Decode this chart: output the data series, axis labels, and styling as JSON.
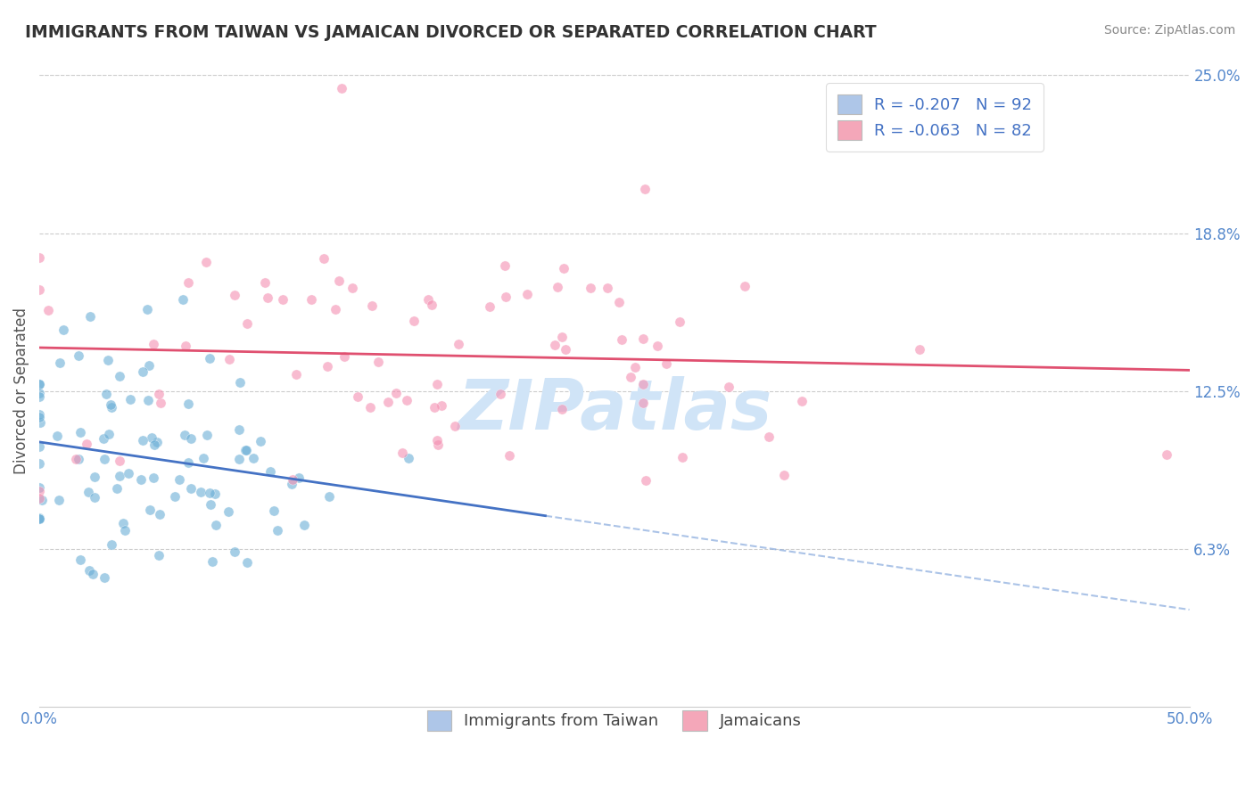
{
  "title": "IMMIGRANTS FROM TAIWAN VS JAMAICAN DIVORCED OR SEPARATED CORRELATION CHART",
  "source": "Source: ZipAtlas.com",
  "xlabel": "",
  "ylabel": "Divorced or Separated",
  "xlim": [
    0.0,
    50.0
  ],
  "ylim": [
    0.0,
    25.0
  ],
  "x_tick_labels": [
    "0.0%",
    "50.0%"
  ],
  "y_tick_values": [
    0.0,
    6.25,
    12.5,
    18.75,
    25.0
  ],
  "y_tick_labels": [
    "",
    "6.3%",
    "12.5%",
    "18.8%",
    "25.0%"
  ],
  "legend_entries": [
    {
      "label": "R = -0.207   N = 92",
      "facecolor": "#aec6e8"
    },
    {
      "label": "R = -0.063   N = 82",
      "facecolor": "#f4a7b9"
    }
  ],
  "scatter_blue": {
    "color": "#6aaed6",
    "alpha": 0.6,
    "R": -0.207,
    "N": 92,
    "x_mean": 4.0,
    "x_std": 4.5,
    "y_mean": 9.8,
    "y_std": 2.5
  },
  "scatter_pink": {
    "color": "#f48fb1",
    "alpha": 0.6,
    "R": -0.063,
    "N": 82,
    "x_mean": 18.0,
    "x_std": 10.0,
    "y_mean": 14.0,
    "y_std": 3.2
  },
  "trend_blue_solid_color": "#4472c4",
  "trend_blue_dashed_color": "#88aadd",
  "trend_pink_color": "#e05070",
  "watermark": "ZIPatlas",
  "watermark_color": "#d0e4f7",
  "background_color": "#ffffff",
  "grid_color": "#cccccc",
  "title_color": "#333333",
  "axis_label_color": "#555555",
  "tick_label_color": "#5588cc",
  "legend_r_color": "#4472c4",
  "blue_solid_x_max": 22.0
}
